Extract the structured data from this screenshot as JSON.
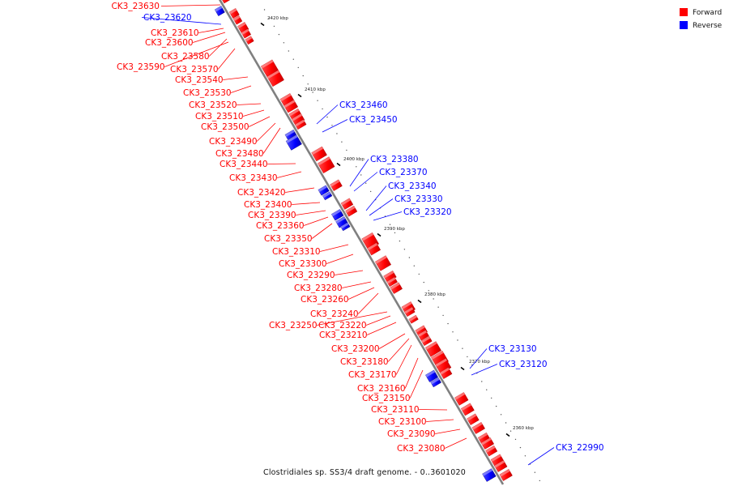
{
  "caption": "Clostridiales sp. SS3/4 draft genome. - 0..3601020",
  "legend": [
    {
      "label": "Forward",
      "color": "#ff0000"
    },
    {
      "label": "Reverse",
      "color": "#0000ff"
    }
  ],
  "colors": {
    "forward": "#ff0000",
    "reverse": "#0000ff",
    "axis": "#808080"
  },
  "ticks": [
    "2420 kbp",
    "2410 kbp",
    "2400 kbp",
    "2390 kbp",
    "2380 kbp",
    "2370 kbp",
    "2360 kbp"
  ],
  "genes": [
    {
      "label": "CK3_23630",
      "strand": "forward"
    },
    {
      "label": "CK3_23620",
      "strand": "reverse"
    },
    {
      "label": "CK3_23610",
      "strand": "forward"
    },
    {
      "label": "CK3_23600",
      "strand": "forward"
    },
    {
      "label": "CK3_23580",
      "strand": "forward"
    },
    {
      "label": "CK3_23590",
      "strand": "forward"
    },
    {
      "label": "CK3_23570",
      "strand": "forward"
    },
    {
      "label": "CK3_23540",
      "strand": "forward"
    },
    {
      "label": "CK3_23530",
      "strand": "forward"
    },
    {
      "label": "CK3_23520",
      "strand": "forward"
    },
    {
      "label": "CK3_23510",
      "strand": "forward"
    },
    {
      "label": "CK3_23500",
      "strand": "forward"
    },
    {
      "label": "CK3_23490",
      "strand": "forward"
    },
    {
      "label": "CK3_23480",
      "strand": "forward"
    },
    {
      "label": "CK3_23460",
      "strand": "reverse"
    },
    {
      "label": "CK3_23450",
      "strand": "reverse"
    },
    {
      "label": "CK3_23440",
      "strand": "forward"
    },
    {
      "label": "CK3_23430",
      "strand": "forward"
    },
    {
      "label": "CK3_23420",
      "strand": "forward"
    },
    {
      "label": "CK3_23400",
      "strand": "forward"
    },
    {
      "label": "CK3_23390",
      "strand": "forward"
    },
    {
      "label": "CK3_23380",
      "strand": "reverse"
    },
    {
      "label": "CK3_23370",
      "strand": "reverse"
    },
    {
      "label": "CK3_23360",
      "strand": "forward"
    },
    {
      "label": "CK3_23350",
      "strand": "forward"
    },
    {
      "label": "CK3_23340",
      "strand": "reverse"
    },
    {
      "label": "CK3_23330",
      "strand": "reverse"
    },
    {
      "label": "CK3_23320",
      "strand": "reverse"
    },
    {
      "label": "CK3_23310",
      "strand": "forward"
    },
    {
      "label": "CK3_23300",
      "strand": "forward"
    },
    {
      "label": "CK3_23290",
      "strand": "forward"
    },
    {
      "label": "CK3_23280",
      "strand": "forward"
    },
    {
      "label": "CK3_23260",
      "strand": "forward"
    },
    {
      "label": "CK3_23240",
      "strand": "forward"
    },
    {
      "label": "CK3_23250",
      "strand": "forward"
    },
    {
      "label": "CK3_23220",
      "strand": "forward"
    },
    {
      "label": "CK3_23210",
      "strand": "forward"
    },
    {
      "label": "CK3_23200",
      "strand": "forward"
    },
    {
      "label": "CK3_23180",
      "strand": "forward"
    },
    {
      "label": "CK3_23170",
      "strand": "forward"
    },
    {
      "label": "CK3_23160",
      "strand": "forward"
    },
    {
      "label": "CK3_23150",
      "strand": "forward"
    },
    {
      "label": "CK3_23130",
      "strand": "reverse"
    },
    {
      "label": "CK3_23120",
      "strand": "reverse"
    },
    {
      "label": "CK3_23110",
      "strand": "forward"
    },
    {
      "label": "CK3_23100",
      "strand": "forward"
    },
    {
      "label": "CK3_23090",
      "strand": "forward"
    },
    {
      "label": "CK3_23080",
      "strand": "forward"
    },
    {
      "label": "CK3_22990",
      "strand": "reverse"
    }
  ]
}
